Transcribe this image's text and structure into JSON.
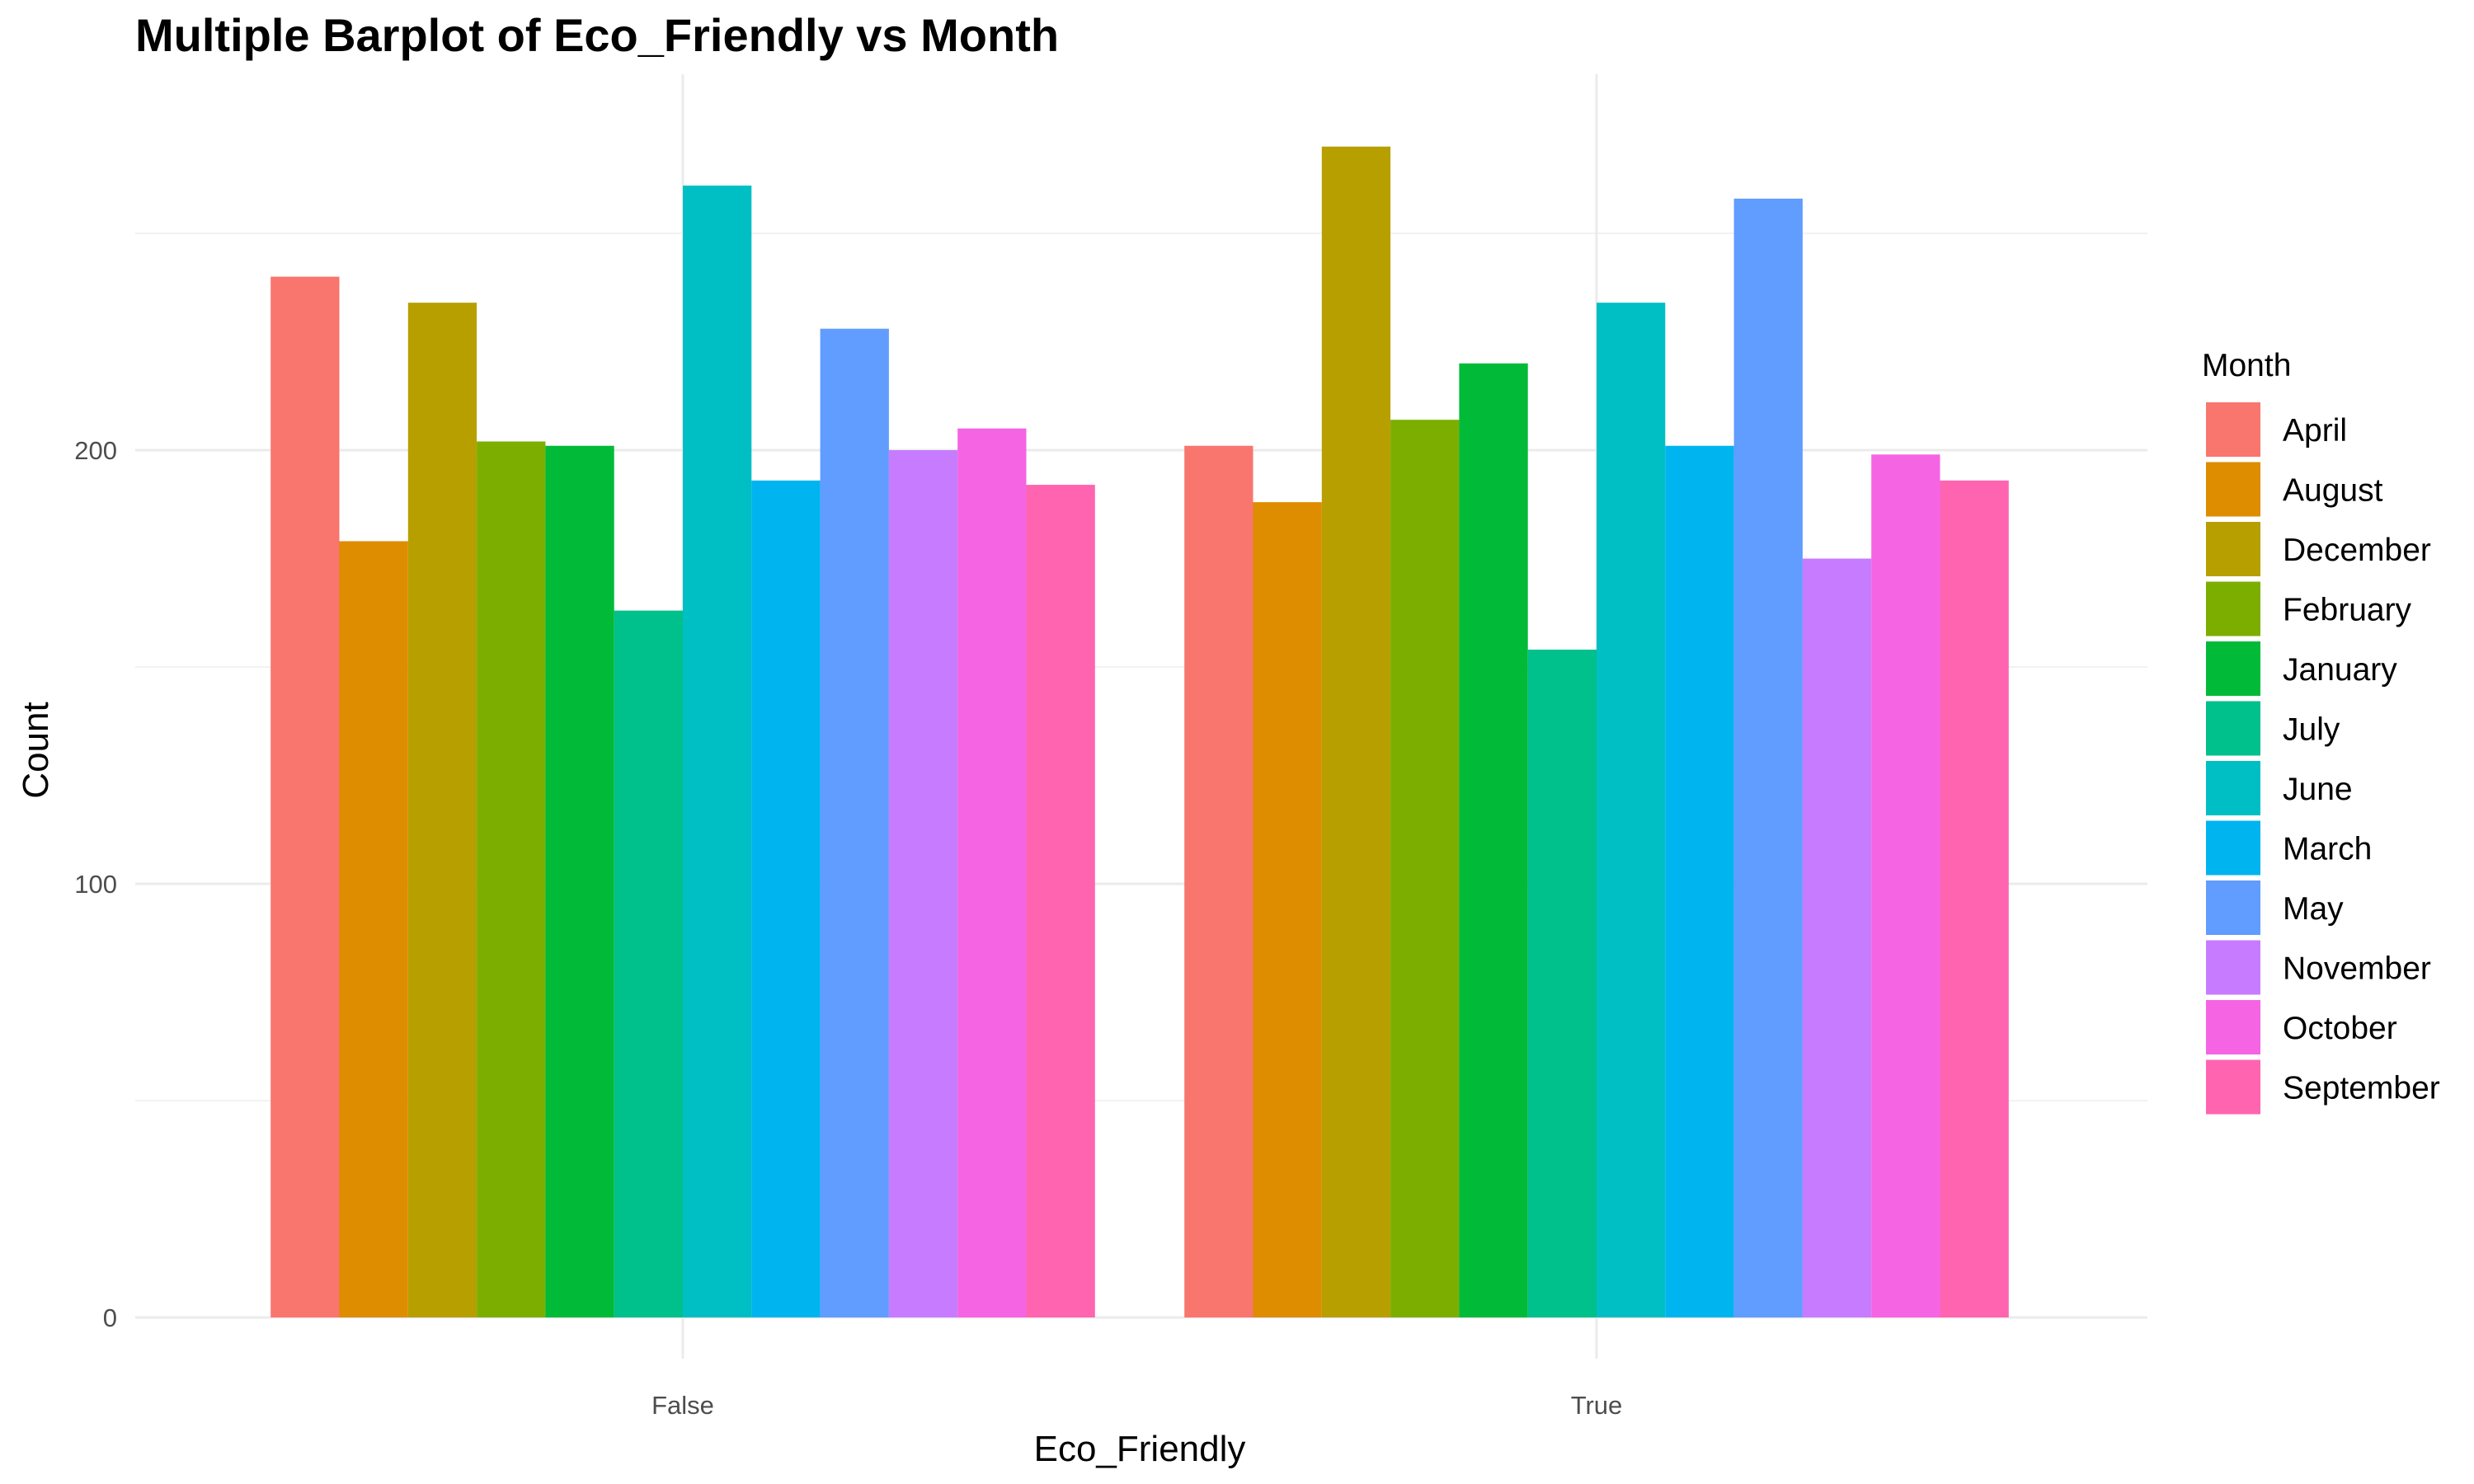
{
  "chart_data": {
    "type": "bar",
    "title": "Multiple Barplot of Eco_Friendly vs Month",
    "xlabel": "Eco_Friendly",
    "ylabel": "Count",
    "categories": [
      "False",
      "True"
    ],
    "ylim": [
      0,
      280
    ],
    "yticks": [
      0,
      100,
      200
    ],
    "legend_title": "Month",
    "legend_position": "right",
    "grid": true,
    "series": [
      {
        "name": "April",
        "color": "#F8766D",
        "values": [
          240,
          201
        ]
      },
      {
        "name": "August",
        "color": "#DE8C00",
        "values": [
          179,
          188
        ]
      },
      {
        "name": "December",
        "color": "#B79F00",
        "values": [
          234,
          270
        ]
      },
      {
        "name": "February",
        "color": "#7CAE00",
        "values": [
          202,
          207
        ]
      },
      {
        "name": "January",
        "color": "#00BA38",
        "values": [
          201,
          220
        ]
      },
      {
        "name": "July",
        "color": "#00C08B",
        "values": [
          163,
          154
        ]
      },
      {
        "name": "June",
        "color": "#00BFC4",
        "values": [
          261,
          234
        ]
      },
      {
        "name": "March",
        "color": "#00B4F0",
        "values": [
          193,
          201
        ]
      },
      {
        "name": "May",
        "color": "#619CFF",
        "values": [
          228,
          258
        ]
      },
      {
        "name": "November",
        "color": "#C77CFF",
        "values": [
          200,
          175
        ]
      },
      {
        "name": "October",
        "color": "#F564E3",
        "values": [
          205,
          199
        ]
      },
      {
        "name": "September",
        "color": "#FF64B0",
        "values": [
          192,
          193
        ]
      }
    ]
  }
}
